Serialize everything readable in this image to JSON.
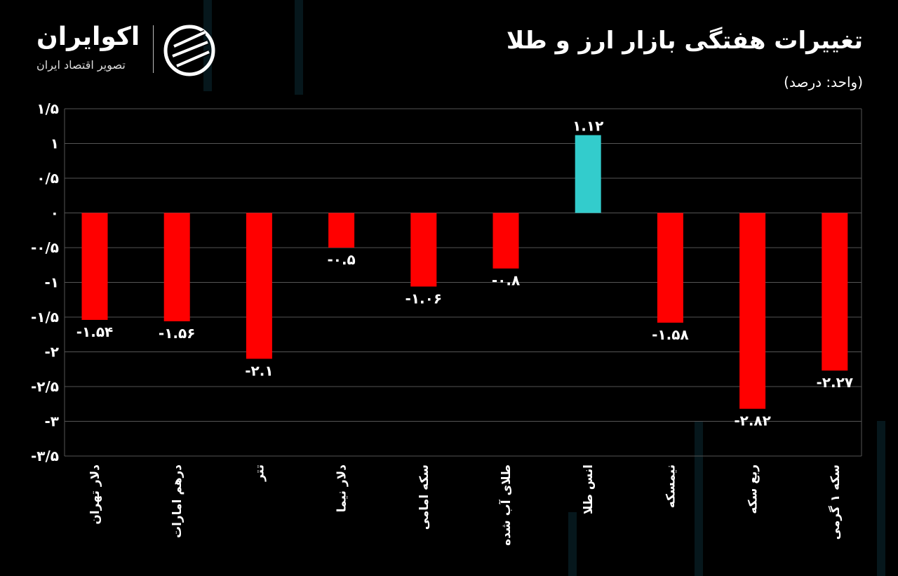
{
  "header": {
    "title": "تغییرات هفتگی بازار ارز و طلا",
    "unit": "(واحد: درصد)"
  },
  "logo": {
    "name": "اکوایران",
    "tagline": "تصویر اقتصاد ایران"
  },
  "colors": {
    "negative": "#ff0000",
    "positive": "#33cccc",
    "background": "#000000",
    "grid": "#555555"
  },
  "chart_data": {
    "type": "bar",
    "title": "تغییرات هفتگی بازار ارز و طلا",
    "ylabel": "(واحد: درصد)",
    "categories": [
      "دلار تهران",
      "درهم امارات",
      "تتر",
      "دلار نیما",
      "سکه امامی",
      "طلای آب شده",
      "انس طلا",
      "نیمسکه",
      "ربع سکه",
      "سکه ۱ گرمی"
    ],
    "values": [
      -1.54,
      -1.56,
      -2.1,
      -0.5,
      -1.06,
      -0.8,
      1.12,
      -1.58,
      -2.82,
      -2.27
    ],
    "data_labels": [
      "-۱.۵۴",
      "-۱.۵۶",
      "-۲.۱",
      "-۰.۵",
      "-۱.۰۶",
      "-۰.۸",
      "۱.۱۲",
      "-۱.۵۸",
      "-۲.۸۲",
      "-۲.۲۷"
    ],
    "ylim": [
      -3.5,
      1.5
    ],
    "yticks": [
      1.5,
      1,
      0.5,
      0,
      -0.5,
      -1,
      -1.5,
      -2,
      -2.5,
      -3,
      -3.5
    ],
    "ytick_labels": [
      "۱/۵",
      "۱",
      "۰/۵",
      "۰",
      "-۰/۵",
      "-۱",
      "-۱/۵",
      "-۲",
      "-۲/۵",
      "-۳",
      "-۳/۵"
    ],
    "grid": true,
    "legend": "none"
  }
}
